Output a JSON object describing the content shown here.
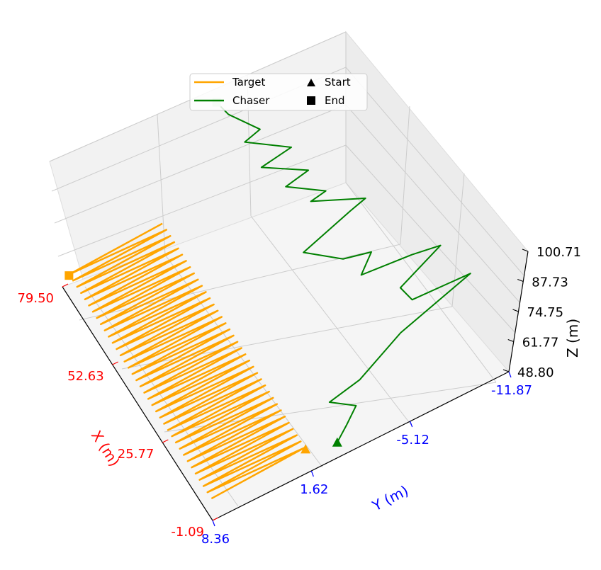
{
  "chart_data": {
    "type": "line",
    "projection": "3d",
    "title": "",
    "xlabel": "X (m)",
    "ylabel": "Y (m)",
    "zlabel": "Z (m)",
    "x_ticks": [
      "-1.09",
      "25.77",
      "52.63",
      "79.50"
    ],
    "y_ticks": [
      "8.36",
      "1.62",
      "-5.12",
      "-11.87"
    ],
    "z_ticks": [
      "48.80",
      "61.77",
      "74.75",
      "87.73",
      "100.71"
    ],
    "xlim": [
      -1.09,
      79.5
    ],
    "ylim": [
      8.36,
      -11.87
    ],
    "zlim": [
      48.8,
      100.71
    ],
    "colors": {
      "x_axis": "#ff0000",
      "y_axis": "#0000ff",
      "z_axis": "#000000",
      "target": "#ffa500",
      "chaser": "#008000"
    },
    "legend": {
      "position": "top-center",
      "entries": [
        {
          "label": "Target",
          "kind": "line",
          "color": "#ffa500"
        },
        {
          "label": "Start",
          "kind": "triangle-marker",
          "color": "#000000"
        },
        {
          "label": "Chaser",
          "kind": "line",
          "color": "#008000"
        },
        {
          "label": "End",
          "kind": "square-marker",
          "color": "#000000"
        }
      ]
    },
    "series": [
      {
        "name": "Target",
        "pattern": "zigzag",
        "x_range": [
          3.0,
          79.5
        ],
        "y_range": [
          8.0,
          1.5
        ],
        "z_range": [
          52,
          53
        ],
        "oscillations": 36,
        "start": [
          3.0,
          1.6,
          53.0
        ],
        "end": [
          79.5,
          8.0,
          52.5
        ]
      },
      {
        "name": "Chaser",
        "x": [
          2.0,
          5.0,
          8.0,
          11.0,
          14.0,
          17.0,
          20.0,
          23.0,
          26.0,
          29.0,
          32.0,
          35.0,
          38.0,
          41.0,
          44.0,
          47.0,
          50.0,
          53.0,
          56.0,
          59.0,
          62.0,
          65.0,
          68.0,
          71.0,
          74.0,
          77.0,
          80.0
        ],
        "y": [
          -0.5,
          -1.5,
          -2.5,
          -1.0,
          -3.5,
          -6.5,
          -11.5,
          -8.0,
          -7.5,
          -10.5,
          -9.0,
          -6.0,
          -7.0,
          -5.5,
          -3.0,
          -6.5,
          -8.0,
          -4.5,
          -6.0,
          -3.5,
          -5.5,
          -2.5,
          -5.0,
          -2.0,
          -3.5,
          -1.5,
          -1.0
        ],
        "z": [
          50.5,
          51.0,
          52.5,
          55.0,
          53.0,
          60.0,
          66.0,
          62.0,
          65.0,
          70.0,
          67.0,
          64.0,
          67.0,
          65.0,
          72.0,
          75.0,
          72.0,
          78.0,
          74.0,
          80.0,
          77.0,
          84.0,
          81.0,
          89.0,
          86.0,
          95.0,
          98.0
        ]
      }
    ]
  }
}
